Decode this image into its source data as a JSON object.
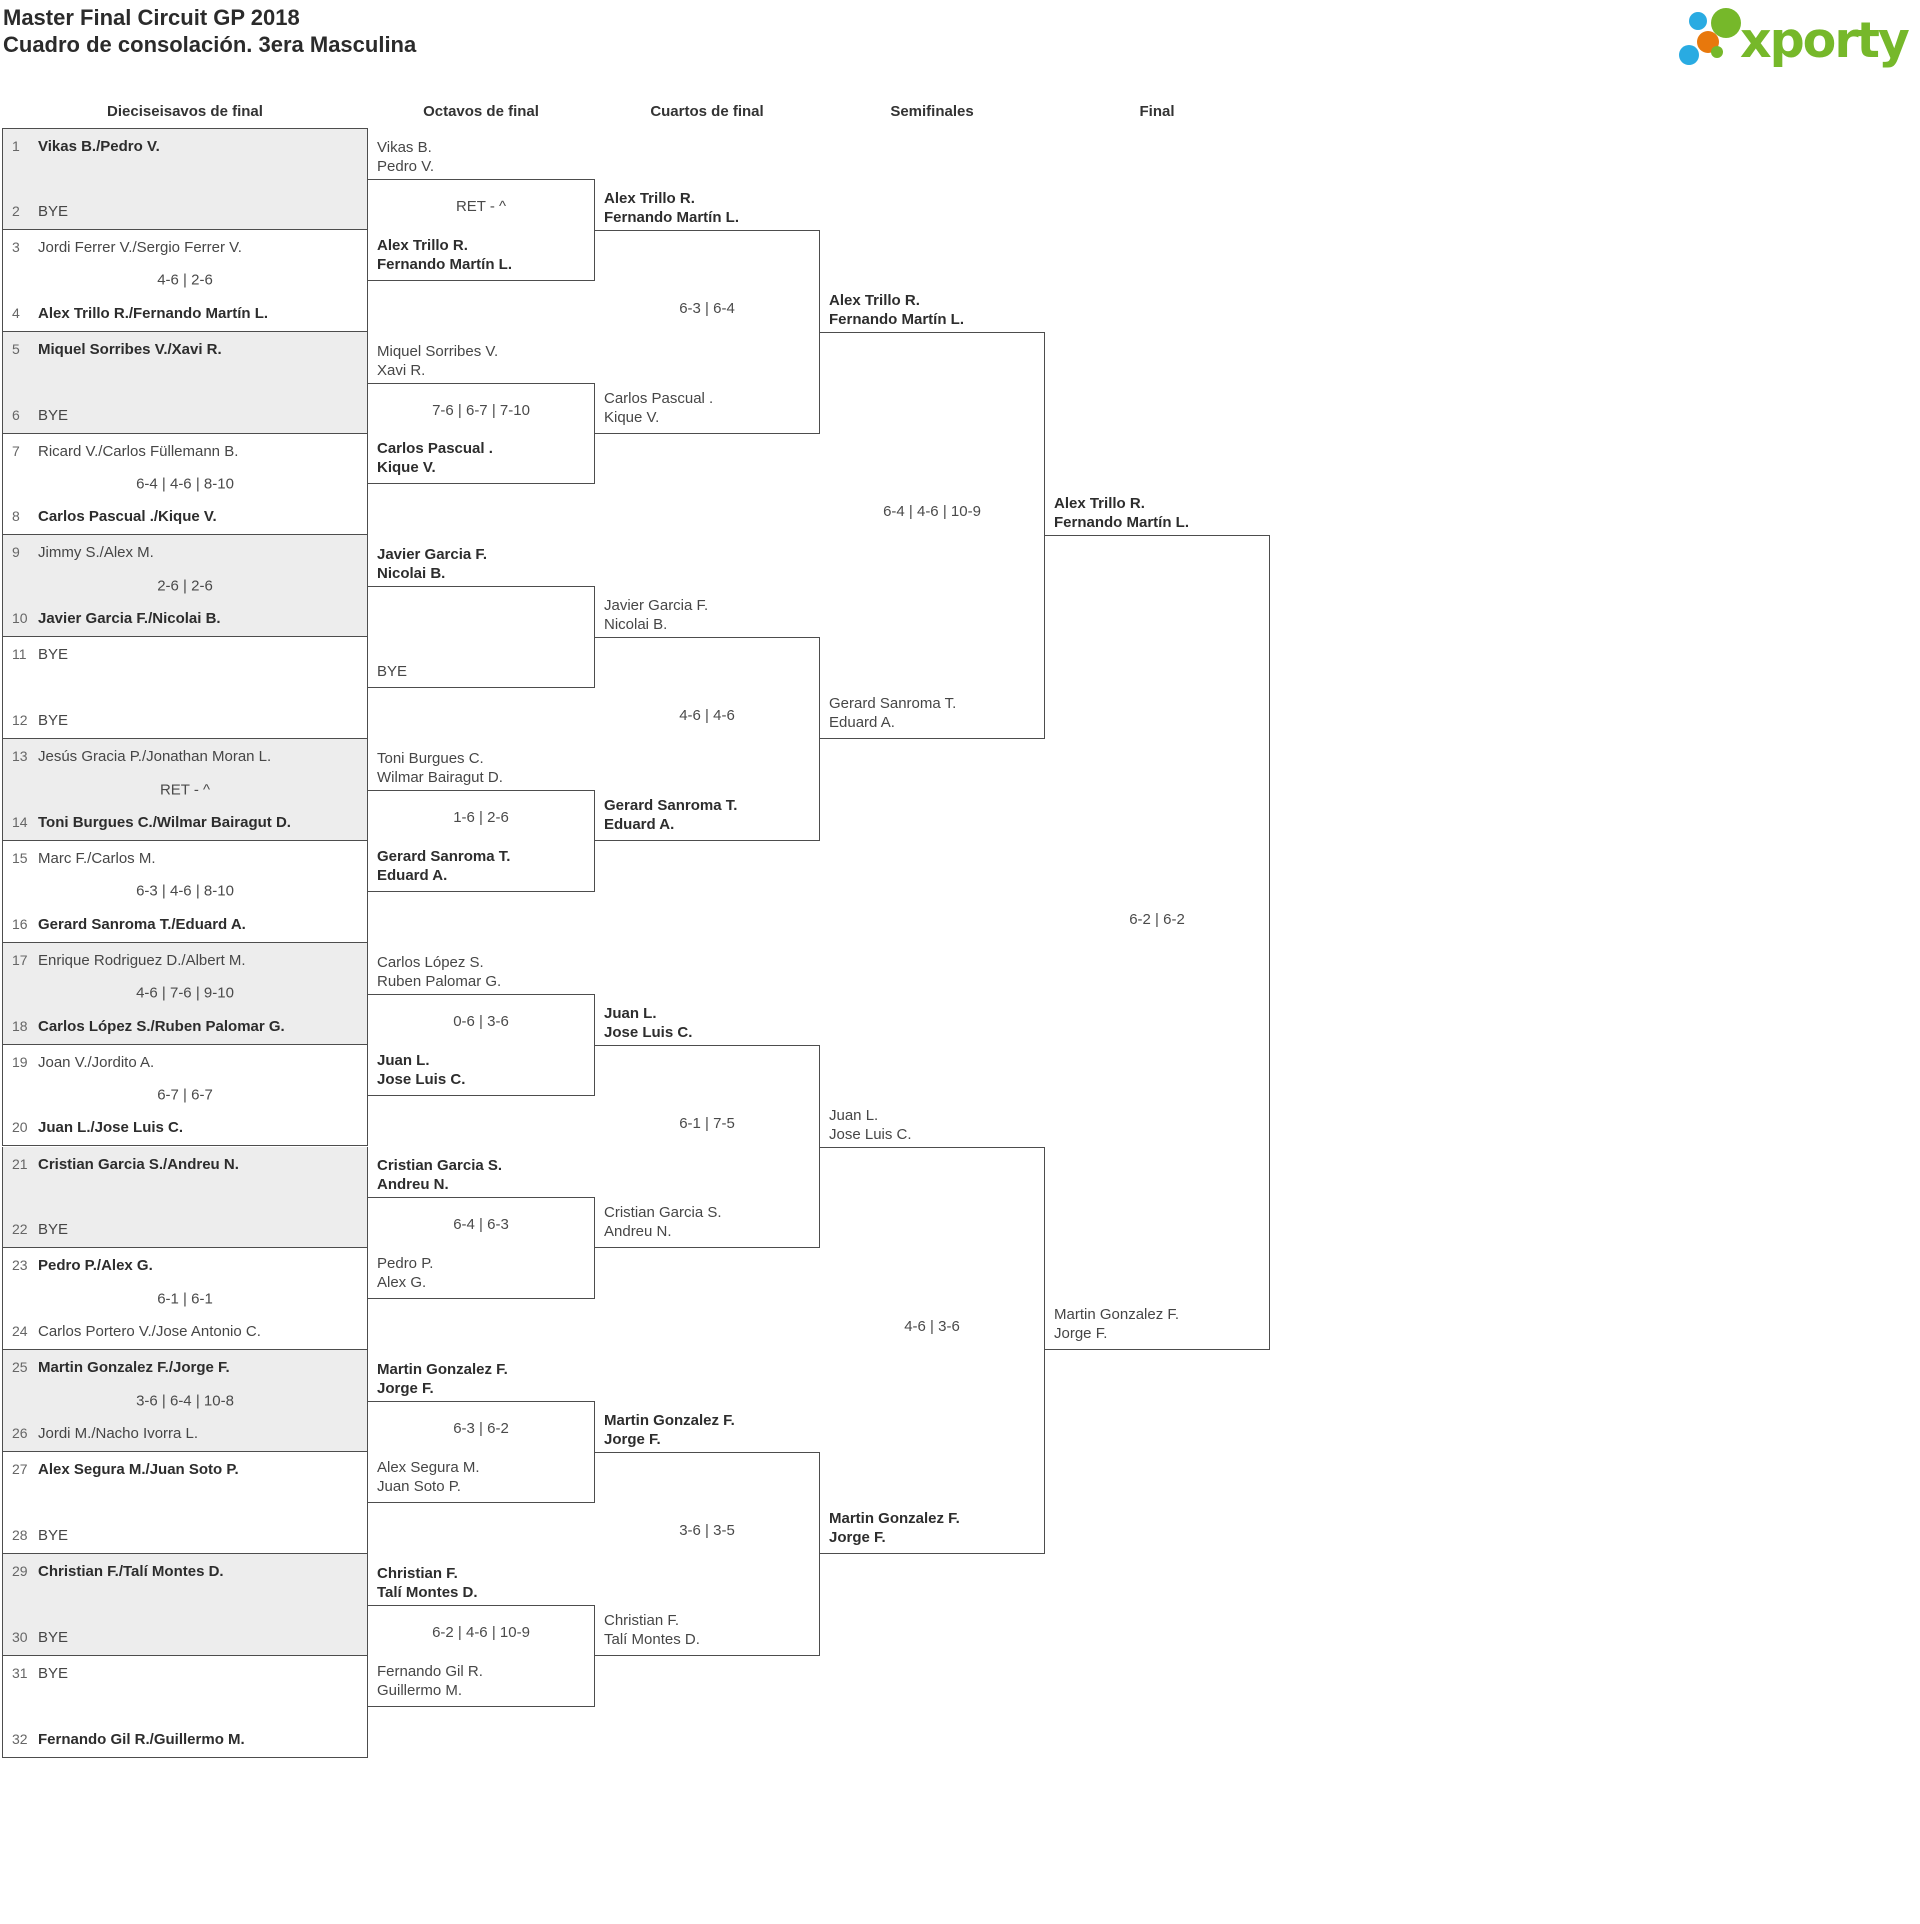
{
  "title": {
    "line1": "Master Final Circuit GP 2018",
    "line2": "Cuadro de consolación. 3era Masculina"
  },
  "logo": {
    "brand": "xporty",
    "colors": {
      "green": "#76b82a",
      "blue": "#29abe2",
      "orange": "#e8780c"
    }
  },
  "rounds": [
    {
      "label": "Dieciseisavos de final"
    },
    {
      "label": "Octavos de final"
    },
    {
      "label": "Cuartos de final"
    },
    {
      "label": "Semifinales"
    },
    {
      "label": "Final"
    }
  ],
  "r32_matches": [
    {
      "seed_a": "1",
      "team_a": "Vikas B./Pedro V.",
      "bold_a": true,
      "score": "",
      "seed_b": "2",
      "team_b": "BYE",
      "bold_b": false
    },
    {
      "seed_a": "3",
      "team_a": "Jordi Ferrer V./Sergio Ferrer V.",
      "bold_a": false,
      "score": "4-6 | 2-6",
      "seed_b": "4",
      "team_b": "Alex Trillo R./Fernando Martín L.",
      "bold_b": true
    },
    {
      "seed_a": "5",
      "team_a": "Miquel Sorribes V./Xavi R.",
      "bold_a": true,
      "score": "",
      "seed_b": "6",
      "team_b": "BYE",
      "bold_b": false
    },
    {
      "seed_a": "7",
      "team_a": "Ricard V./Carlos Füllemann B.",
      "bold_a": false,
      "score": "6-4 | 4-6 | 8-10",
      "seed_b": "8",
      "team_b": "Carlos Pascual ./Kique V.",
      "bold_b": true
    },
    {
      "seed_a": "9",
      "team_a": "Jimmy S./Alex M.",
      "bold_a": false,
      "score": "2-6 | 2-6",
      "seed_b": "10",
      "team_b": "Javier Garcia F./Nicolai B.",
      "bold_b": true
    },
    {
      "seed_a": "11",
      "team_a": "BYE",
      "bold_a": false,
      "score": "",
      "seed_b": "12",
      "team_b": "BYE",
      "bold_b": false
    },
    {
      "seed_a": "13",
      "team_a": "Jesús Gracia P./Jonathan Moran L.",
      "bold_a": false,
      "score": "RET - ^",
      "seed_b": "14",
      "team_b": "Toni Burgues C./Wilmar Bairagut D.",
      "bold_b": true
    },
    {
      "seed_a": "15",
      "team_a": "Marc F./Carlos M.",
      "bold_a": false,
      "score": "6-3 | 4-6 | 8-10",
      "seed_b": "16",
      "team_b": "Gerard Sanroma T./Eduard A.",
      "bold_b": true
    },
    {
      "seed_a": "17",
      "team_a": "Enrique Rodriguez D./Albert M.",
      "bold_a": false,
      "score": "4-6 | 7-6 | 9-10",
      "seed_b": "18",
      "team_b": "Carlos López S./Ruben Palomar G.",
      "bold_b": true
    },
    {
      "seed_a": "19",
      "team_a": "Joan V./Jordito A.",
      "bold_a": false,
      "score": "6-7 | 6-7",
      "seed_b": "20",
      "team_b": "Juan L./Jose Luis C.",
      "bold_b": true
    },
    {
      "seed_a": "21",
      "team_a": "Cristian Garcia S./Andreu N.",
      "bold_a": true,
      "score": "",
      "seed_b": "22",
      "team_b": "BYE",
      "bold_b": false
    },
    {
      "seed_a": "23",
      "team_a": "Pedro P./Alex G.",
      "bold_a": true,
      "score": "6-1 | 6-1",
      "seed_b": "24",
      "team_b": "Carlos Portero V./Jose Antonio C.",
      "bold_b": false
    },
    {
      "seed_a": "25",
      "team_a": "Martin Gonzalez F./Jorge F.",
      "bold_a": true,
      "score": "3-6 | 6-4 | 10-8",
      "seed_b": "26",
      "team_b": "Jordi M./Nacho Ivorra L.",
      "bold_b": false
    },
    {
      "seed_a": "27",
      "team_a": "Alex Segura M./Juan Soto P.",
      "bold_a": true,
      "score": "",
      "seed_b": "28",
      "team_b": "BYE",
      "bold_b": false
    },
    {
      "seed_a": "29",
      "team_a": "Christian F./Talí Montes D.",
      "bold_a": true,
      "score": "",
      "seed_b": "30",
      "team_b": "BYE",
      "bold_b": false
    },
    {
      "seed_a": "31",
      "team_a": "BYE",
      "bold_a": false,
      "score": "",
      "seed_b": "32",
      "team_b": "Fernando Gil R./Guillermo M.",
      "bold_b": true
    }
  ],
  "bracket": {
    "octavos": [
      {
        "team_a": [
          "Vikas B.",
          "Pedro V."
        ],
        "bold_a": false,
        "score": "RET - ^",
        "team_b": [
          "Alex Trillo R.",
          "Fernando Martín L."
        ],
        "bold_b": true
      },
      {
        "team_a": [
          "Miquel Sorribes V.",
          "Xavi R."
        ],
        "bold_a": false,
        "score": "7-6 | 6-7 | 7-10",
        "team_b": [
          "Carlos Pascual .",
          "Kique V."
        ],
        "bold_b": true
      },
      {
        "team_a": [
          "Javier Garcia F.",
          "Nicolai B."
        ],
        "bold_a": true,
        "score": "",
        "team_b": [
          "BYE"
        ],
        "bold_b": false
      },
      {
        "team_a": [
          "Toni Burgues C.",
          "Wilmar Bairagut D."
        ],
        "bold_a": false,
        "score": "1-6 | 2-6",
        "team_b": [
          "Gerard Sanroma T.",
          "Eduard A."
        ],
        "bold_b": true
      },
      {
        "team_a": [
          "Carlos López S.",
          "Ruben Palomar G."
        ],
        "bold_a": false,
        "score": "0-6 | 3-6",
        "team_b": [
          "Juan L.",
          "Jose Luis C."
        ],
        "bold_b": true
      },
      {
        "team_a": [
          "Cristian Garcia S.",
          "Andreu N."
        ],
        "bold_a": true,
        "score": "6-4 | 6-3",
        "team_b": [
          "Pedro P.",
          "Alex G."
        ],
        "bold_b": false
      },
      {
        "team_a": [
          "Martin Gonzalez F.",
          "Jorge F."
        ],
        "bold_a": true,
        "score": "6-3 | 6-2",
        "team_b": [
          "Alex Segura M.",
          "Juan Soto P."
        ],
        "bold_b": false
      },
      {
        "team_a": [
          "Christian F.",
          "Talí Montes D."
        ],
        "bold_a": true,
        "score": "6-2 | 4-6 | 10-9",
        "team_b": [
          "Fernando Gil R.",
          "Guillermo M."
        ],
        "bold_b": false
      }
    ],
    "cuartos": [
      {
        "team_a": [
          "Alex Trillo R.",
          "Fernando Martín L."
        ],
        "bold_a": true,
        "score": "6-3 | 6-4",
        "team_b": [
          "Carlos Pascual .",
          "Kique V."
        ],
        "bold_b": false
      },
      {
        "team_a": [
          "Javier Garcia F.",
          "Nicolai B."
        ],
        "bold_a": false,
        "score": "4-6 | 4-6",
        "team_b": [
          "Gerard Sanroma T.",
          "Eduard A."
        ],
        "bold_b": true
      },
      {
        "team_a": [
          "Juan L.",
          "Jose Luis C."
        ],
        "bold_a": true,
        "score": "6-1 | 7-5",
        "team_b": [
          "Cristian Garcia S.",
          "Andreu N."
        ],
        "bold_b": false
      },
      {
        "team_a": [
          "Martin Gonzalez F.",
          "Jorge F."
        ],
        "bold_a": true,
        "score": "3-6 | 3-5",
        "team_b": [
          "Christian F.",
          "Talí Montes D."
        ],
        "bold_b": false
      }
    ],
    "semifinales": [
      {
        "team_a": [
          "Alex Trillo R.",
          "Fernando Martín L."
        ],
        "bold_a": true,
        "score": "6-4 | 4-6 | 10-9",
        "team_b": [
          "Gerard Sanroma T.",
          "Eduard A."
        ],
        "bold_b": false
      },
      {
        "team_a": [
          "Juan L.",
          "Jose Luis C."
        ],
        "bold_a": false,
        "score": "4-6 | 3-6",
        "team_b": [
          "Martin Gonzalez F.",
          "Jorge F."
        ],
        "bold_b": true
      }
    ],
    "final": [
      {
        "team_a": [
          "Alex Trillo R.",
          "Fernando Martín L."
        ],
        "bold_a": true,
        "score": "6-2 | 6-2",
        "team_b": [
          "Martin Gonzalez F.",
          "Jorge F."
        ],
        "bold_b": false
      }
    ]
  }
}
